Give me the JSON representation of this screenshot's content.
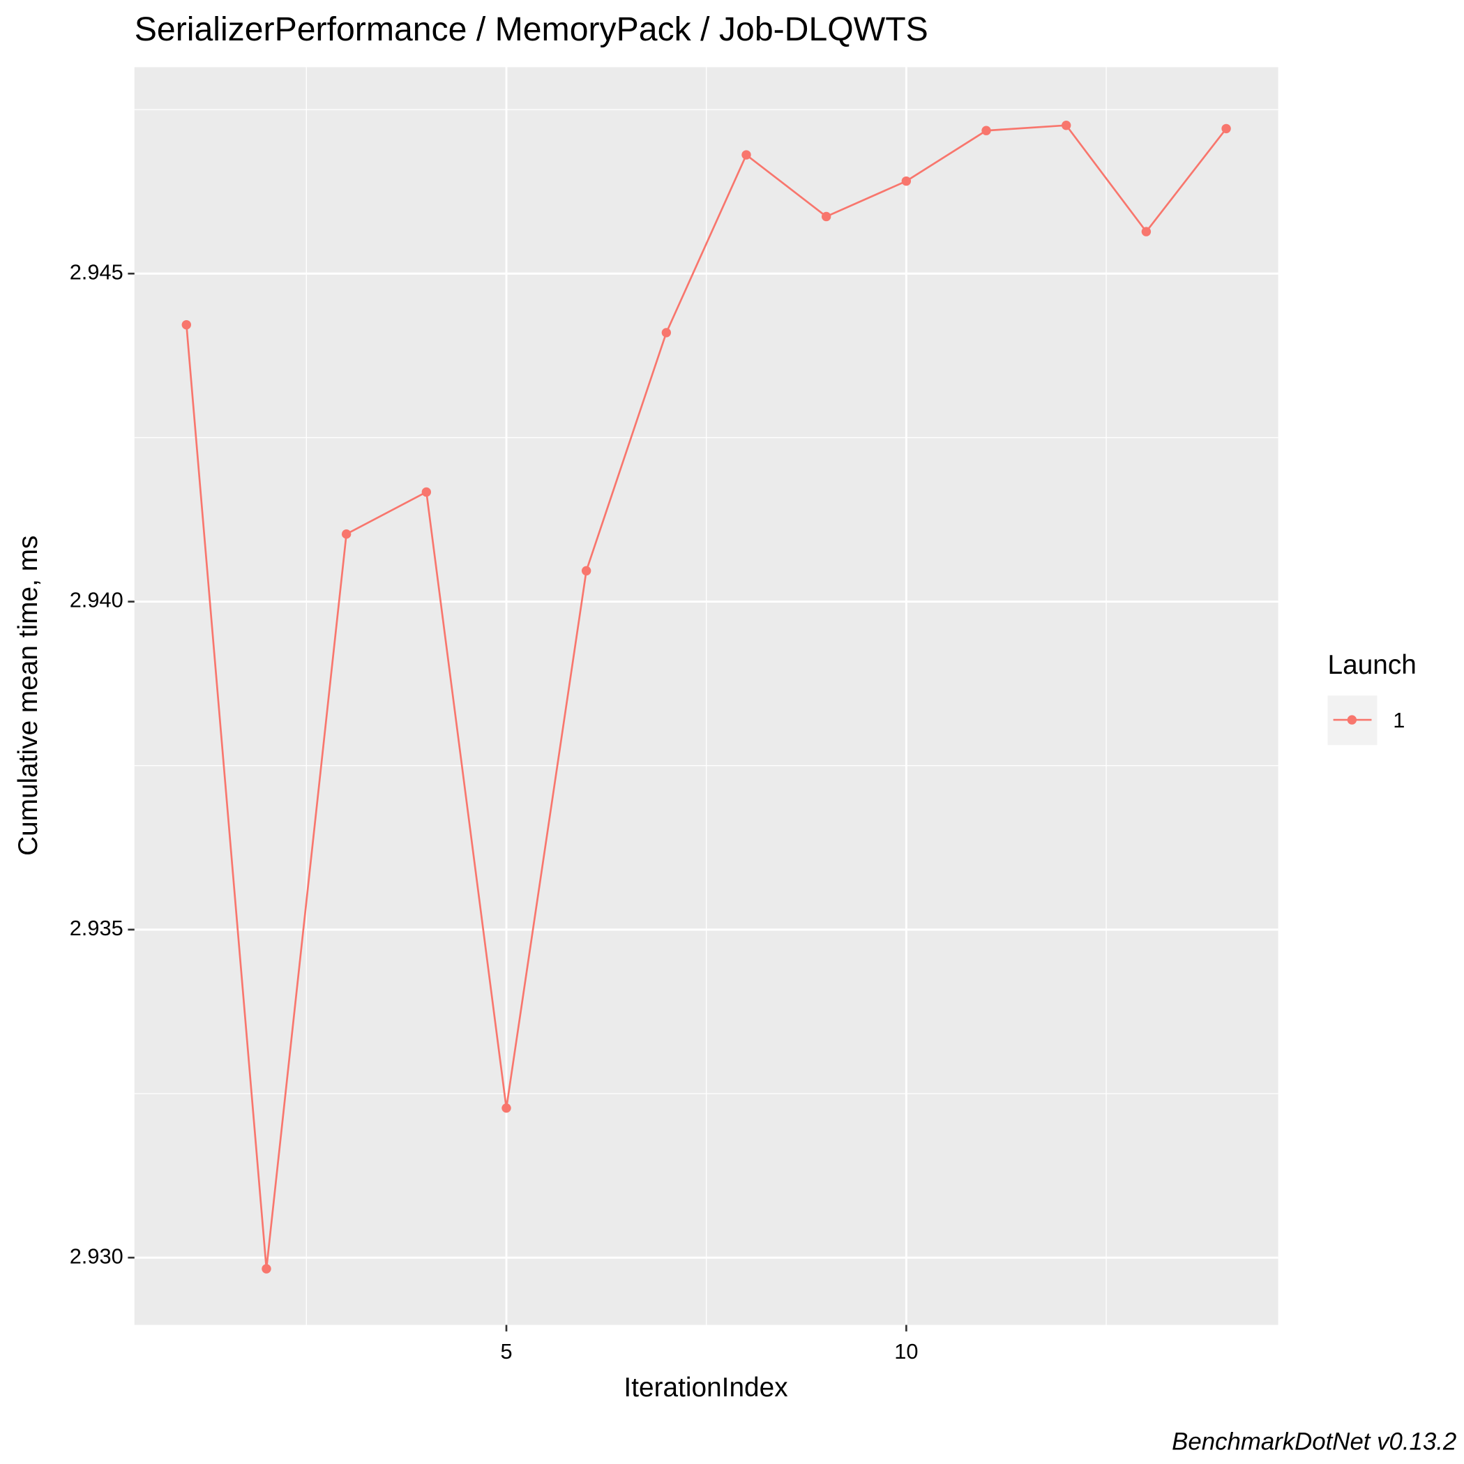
{
  "chart_data": {
    "type": "line",
    "title": "SerializerPerformance / MemoryPack / Job-DLQWTS",
    "x_label": "IterationIndex",
    "y_label": "Cumulative mean time, ms",
    "caption": "BenchmarkDotNet v0.13.2",
    "legend_title": "Launch",
    "legend_position": "right",
    "x": [
      1,
      2,
      3,
      4,
      5,
      6,
      7,
      8,
      9,
      10,
      11,
      12,
      13,
      14
    ],
    "series": [
      {
        "name": "1",
        "color": "#F8766D",
        "values": [
          2.94422,
          2.92983,
          2.94103,
          2.94167,
          2.93228,
          2.94047,
          2.9441,
          2.94681,
          2.94587,
          2.94641,
          2.94718,
          2.94726,
          2.94564,
          2.94721
        ]
      }
    ],
    "xlim": [
      0.35,
      14.65
    ],
    "xticks": [
      5,
      10
    ],
    "xminorticks": [
      2.5,
      7.5,
      12.5
    ],
    "ylim": [
      2.928975,
      2.948146
    ],
    "yticks": [
      {
        "value": 2.93,
        "label": "2.930"
      },
      2.935,
      {
        "value": 2.94,
        "label": "2.940"
      },
      2.945
    ],
    "yminorticks": [
      2.9325,
      2.9375,
      2.9425,
      2.9475
    ],
    "grid": true
  }
}
